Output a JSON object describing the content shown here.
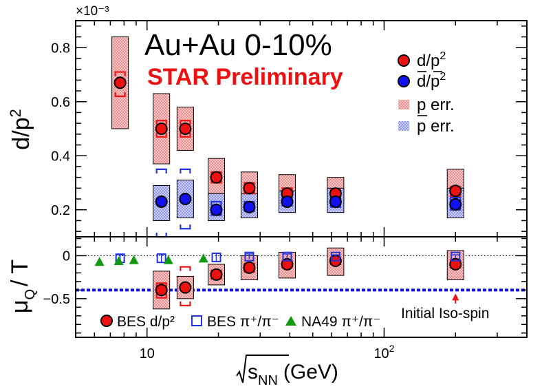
{
  "chart_data": [
    {
      "type": "scatter",
      "panel": "top",
      "x_scale": "log",
      "xlim": [
        5,
        400
      ],
      "ylim": [
        0.1,
        0.9
      ],
      "y_exponent_label": "×10⁻³",
      "ylabel": "d/p²",
      "yticks": [
        0.2,
        0.4,
        0.6,
        0.8
      ],
      "ytick_labels": [
        "0.2",
        "0.4",
        "0.6",
        "0.8"
      ],
      "title": "Au+Au 0-10%",
      "subtitle": "STAR Preliminary",
      "legend": {
        "placement": "top-right",
        "entries": [
          {
            "id": "d",
            "num": "d",
            "den": "p",
            "den_bar": false
          },
          {
            "id": "dbar",
            "num": "d",
            "den": "p",
            "den_bar": true
          },
          {
            "id": "perr",
            "label": "p err.",
            "bar": false
          },
          {
            "id": "pbarerr",
            "label": "p err.",
            "bar": true
          }
        ]
      },
      "series": [
        {
          "name": "d/p²",
          "color": "#ee1111",
          "points": [
            {
              "x": 7.7,
              "y": 0.67,
              "sys_lo": 0.5,
              "sys_hi": 0.84,
              "pt_lo": 0.62,
              "pt_hi": 0.71
            },
            {
              "x": 11.5,
              "y": 0.5,
              "sys_lo": 0.37,
              "sys_hi": 0.63,
              "pt_lo": 0.47,
              "pt_hi": 0.53
            },
            {
              "x": 14.5,
              "y": 0.5,
              "sys_lo": 0.42,
              "sys_hi": 0.58,
              "pt_lo": 0.47,
              "pt_hi": 0.53
            },
            {
              "x": 19.6,
              "y": 0.32,
              "sys_lo": 0.26,
              "sys_hi": 0.39,
              "pt_lo": 0.3,
              "pt_hi": 0.34
            },
            {
              "x": 27,
              "y": 0.28,
              "sys_lo": 0.23,
              "sys_hi": 0.34,
              "pt_lo": 0.26,
              "pt_hi": 0.3
            },
            {
              "x": 39,
              "y": 0.26,
              "sys_lo": 0.23,
              "sys_hi": 0.33,
              "pt_lo": 0.25,
              "pt_hi": 0.28
            },
            {
              "x": 62.4,
              "y": 0.26,
              "sys_lo": 0.22,
              "sys_hi": 0.32,
              "pt_lo": 0.245,
              "pt_hi": 0.275
            },
            {
              "x": 200,
              "y": 0.27,
              "sys_lo": 0.2,
              "sys_hi": 0.35,
              "pt_lo": 0.25,
              "pt_hi": 0.285
            }
          ]
        },
        {
          "name": "d̄/p̄²",
          "color": "#1111ee",
          "points": [
            {
              "x": 11.5,
              "y": 0.23,
              "sys_lo": 0.16,
              "sys_hi": 0.29,
              "pt_lo": 0.1,
              "pt_hi": 0.35
            },
            {
              "x": 14.5,
              "y": 0.24,
              "sys_lo": 0.17,
              "sys_hi": 0.31,
              "pt_lo": 0.13,
              "pt_hi": 0.35
            },
            {
              "x": 19.6,
              "y": 0.2,
              "sys_lo": 0.16,
              "sys_hi": 0.26,
              "pt_lo": 0.18,
              "pt_hi": 0.23
            },
            {
              "x": 27,
              "y": 0.21,
              "sys_lo": 0.17,
              "sys_hi": 0.26,
              "pt_lo": 0.195,
              "pt_hi": 0.23
            },
            {
              "x": 39,
              "y": 0.23,
              "sys_lo": 0.19,
              "sys_hi": 0.27,
              "pt_lo": 0.215,
              "pt_hi": 0.245
            },
            {
              "x": 62.4,
              "y": 0.23,
              "sys_lo": 0.19,
              "sys_hi": 0.28,
              "pt_lo": 0.21,
              "pt_hi": 0.25
            },
            {
              "x": 200,
              "y": 0.22,
              "sys_lo": 0.17,
              "sys_hi": 0.28,
              "pt_lo": 0.2,
              "pt_hi": 0.245
            }
          ]
        }
      ]
    },
    {
      "type": "scatter",
      "panel": "bottom",
      "x_scale": "log",
      "xlim": [
        5,
        400
      ],
      "ylim": [
        -0.95,
        0.22
      ],
      "ylabel": "μ_Q / T",
      "ylabel_parts": {
        "mu": "μ",
        "sub": "Q",
        "rest": "/ T"
      },
      "yticks": [
        0,
        -0.5
      ],
      "ytick_labels": [
        "0",
        "−0.5"
      ],
      "xticks": [
        10,
        100
      ],
      "xtick_labels": [
        "10",
        "10²"
      ],
      "xlabel": "√sNN (GeV)",
      "xlabel_parts": {
        "s": "s",
        "sub": "NN",
        "rest": "(GeV)"
      },
      "reference_lines": [
        {
          "y": 0,
          "style": "dotted",
          "color": "#000000"
        },
        {
          "y": -0.4,
          "style": "dashed",
          "color": "#1111dd"
        }
      ],
      "annotation": {
        "text": "Initial Iso-spin",
        "x": 200,
        "arrow_to_y": -0.4
      },
      "legend": {
        "placement": "bottom-left",
        "entries": [
          {
            "id": "bes_d",
            "text": "BES d/p²"
          },
          {
            "id": "bes_pi",
            "text": "BES π⁺/π⁻"
          },
          {
            "id": "na49",
            "text": "NA49 π⁺/π⁻"
          }
        ]
      },
      "series": [
        {
          "name": "BES d/p²",
          "color": "#ee1111",
          "points": [
            {
              "x": 11.5,
              "y": -0.4,
              "sys_lo": -0.62,
              "sys_hi": -0.18,
              "pt_lo": -0.49,
              "pt_hi": -0.32
            },
            {
              "x": 14.5,
              "y": -0.37,
              "sys_lo": -0.5,
              "sys_hi": -0.24,
              "pt_lo": -0.58,
              "pt_hi": -0.13
            },
            {
              "x": 19.6,
              "y": -0.22,
              "sys_lo": -0.34,
              "sys_hi": -0.1,
              "pt_lo": -0.27,
              "pt_hi": -0.17
            },
            {
              "x": 27,
              "y": -0.14,
              "sys_lo": -0.28,
              "sys_hi": 0.0,
              "pt_lo": -0.19,
              "pt_hi": -0.09
            },
            {
              "x": 39,
              "y": -0.1,
              "sys_lo": -0.26,
              "sys_hi": 0.04,
              "pt_lo": -0.14,
              "pt_hi": -0.06
            },
            {
              "x": 62.4,
              "y": -0.06,
              "sys_lo": -0.23,
              "sys_hi": 0.09,
              "pt_lo": -0.1,
              "pt_hi": -0.02
            },
            {
              "x": 200,
              "y": -0.1,
              "sys_lo": -0.28,
              "sys_hi": 0.06,
              "pt_lo": -0.14,
              "pt_hi": -0.05
            }
          ]
        },
        {
          "name": "BES π⁺/π⁻",
          "color": "#2233dd",
          "points": [
            {
              "x": 7.7,
              "y": -0.03,
              "err": 0.04
            },
            {
              "x": 11.5,
              "y": -0.03,
              "err": 0.05
            },
            {
              "x": 19.6,
              "y": -0.02,
              "err": 0.05
            },
            {
              "x": 27,
              "y": -0.01,
              "err": 0.03
            },
            {
              "x": 39,
              "y": -0.01,
              "err": 0.03
            },
            {
              "x": 62.4,
              "y": -0.01,
              "err": 0.02
            },
            {
              "x": 200,
              "y": -0.01,
              "err": 0.02
            }
          ]
        },
        {
          "name": "NA49 π⁺/π⁻",
          "color": "#119911",
          "points": [
            {
              "x": 6.3,
              "y": -0.07
            },
            {
              "x": 7.6,
              "y": -0.06
            },
            {
              "x": 8.8,
              "y": -0.05
            },
            {
              "x": 12.3,
              "y": -0.05
            },
            {
              "x": 17.3,
              "y": -0.03
            }
          ]
        }
      ]
    }
  ]
}
